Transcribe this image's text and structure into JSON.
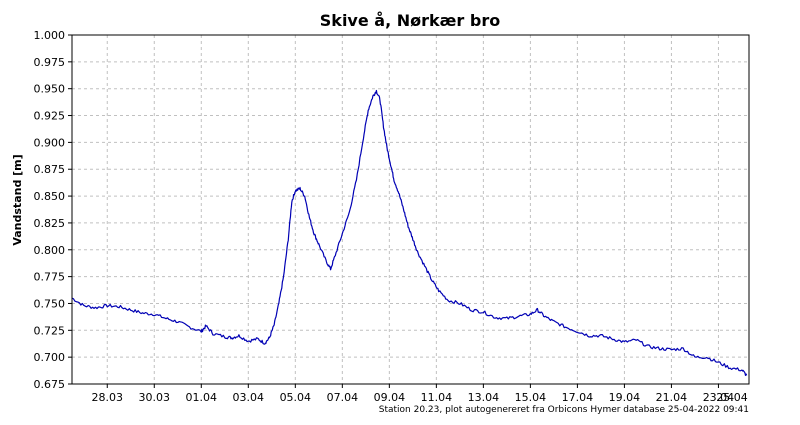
{
  "chart_data": {
    "type": "line",
    "title": "Skive å, Nørkær bro",
    "ylabel": "Vandstand [m]",
    "xlabel": "",
    "ylim": [
      0.675,
      1.0
    ],
    "xlim": [
      26.5,
      55.3
    ],
    "grid": true,
    "yticks": [
      "0.675",
      "0.700",
      "0.725",
      "0.750",
      "0.775",
      "0.800",
      "0.825",
      "0.850",
      "0.875",
      "0.900",
      "0.925",
      "0.950",
      "0.975",
      "1.000"
    ],
    "yticks_values": [
      0.675,
      0.7,
      0.725,
      0.75,
      0.775,
      0.8,
      0.825,
      0.85,
      0.875,
      0.9,
      0.925,
      0.95,
      0.975,
      1.0
    ],
    "xticks": [
      "28.03",
      "30.03",
      "01.04",
      "03.04",
      "05.04",
      "07.04",
      "09.04",
      "11.04",
      "13.04",
      "15.04",
      "17.04",
      "19.04",
      "21.04",
      "23.04",
      "25.04"
    ],
    "xticks_values": [
      28,
      30,
      32,
      34,
      36,
      38,
      40,
      42,
      44,
      46,
      48,
      50,
      52,
      54,
      56
    ],
    "x_unit": "days from 1 March 2022 (28.03 = 28, 01.04 = 32)",
    "series": [
      {
        "name": "Vandstand",
        "color": "#0000b4",
        "x": [
          26.5,
          27.0,
          27.5,
          28.0,
          28.5,
          29.0,
          29.5,
          30.0,
          30.5,
          31.0,
          31.5,
          32.0,
          32.2,
          32.5,
          33.0,
          33.3,
          33.6,
          34.0,
          34.4,
          34.7,
          34.9,
          35.1,
          35.3,
          35.5,
          35.7,
          35.85,
          36.0,
          36.2,
          36.4,
          36.6,
          36.8,
          37.0,
          37.3,
          37.5,
          37.7,
          38.0,
          38.3,
          38.6,
          38.9,
          39.1,
          39.3,
          39.45,
          39.6,
          39.75,
          39.9,
          40.05,
          40.2,
          40.4,
          40.6,
          40.8,
          41.0,
          41.2,
          41.5,
          41.8,
          42.1,
          42.5,
          43.0,
          43.5,
          44.0,
          44.5,
          45.0,
          45.5,
          46.0,
          46.3,
          46.6,
          47.0,
          47.5,
          48.0,
          48.5,
          49.0,
          49.5,
          50.0,
          50.5,
          51.0,
          51.5,
          52.0,
          52.5,
          53.0,
          53.5,
          54.0,
          54.5,
          55.0,
          55.2
        ],
        "values": [
          0.755,
          0.748,
          0.746,
          0.748,
          0.747,
          0.744,
          0.741,
          0.74,
          0.736,
          0.733,
          0.728,
          0.724,
          0.729,
          0.722,
          0.719,
          0.718,
          0.72,
          0.715,
          0.717,
          0.713,
          0.718,
          0.73,
          0.75,
          0.775,
          0.81,
          0.845,
          0.855,
          0.857,
          0.85,
          0.83,
          0.815,
          0.805,
          0.79,
          0.782,
          0.795,
          0.815,
          0.835,
          0.865,
          0.905,
          0.93,
          0.943,
          0.948,
          0.94,
          0.915,
          0.895,
          0.88,
          0.865,
          0.853,
          0.838,
          0.822,
          0.81,
          0.798,
          0.785,
          0.772,
          0.762,
          0.753,
          0.75,
          0.744,
          0.742,
          0.737,
          0.736,
          0.738,
          0.74,
          0.744,
          0.738,
          0.733,
          0.728,
          0.724,
          0.72,
          0.72,
          0.717,
          0.714,
          0.716,
          0.71,
          0.708,
          0.707,
          0.708,
          0.7,
          0.7,
          0.695,
          0.69,
          0.688,
          0.683
        ]
      }
    ],
    "footer": "Station 20.23, plot autogenereret fra Orbicons Hymer database 25-04-2022 09:41"
  }
}
